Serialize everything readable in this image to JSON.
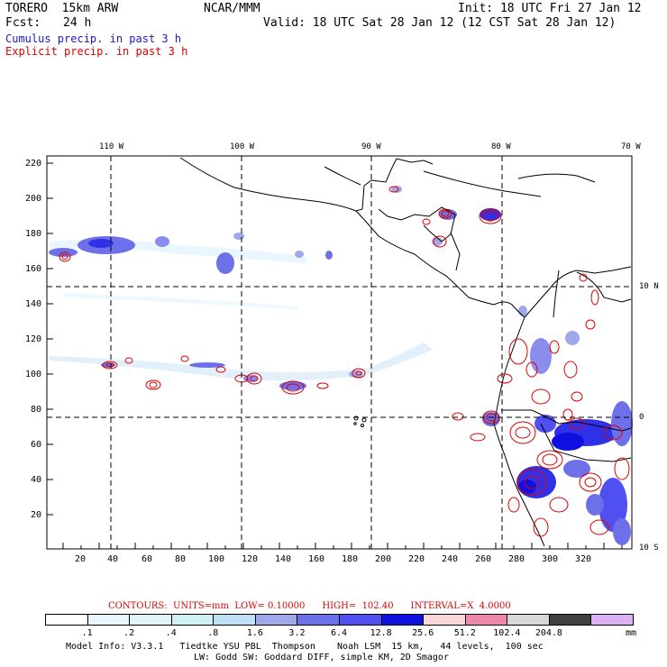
{
  "header": {
    "model": "TORERO  15km ARW",
    "org": "NCAR/MMM",
    "init": "Init: 18 UTC Fri 27 Jan 12",
    "fcst_label": "Fcst:",
    "fcst_value": "24 h",
    "valid": "Valid: 18 UTC Sat 28 Jan 12 (12 CST Sat 28 Jan 12)"
  },
  "legend": {
    "cumulus": "Cumulus precip. in past 3 h",
    "explicit": "Explicit precip. in past 3 h",
    "cumulus_color": "#1a1acc",
    "explicit_color": "#dd0000"
  },
  "map": {
    "top_lon_labels": [
      "110 W",
      "100 W",
      "90 W",
      "80 W",
      "70 W"
    ],
    "right_lat_labels": [
      "10 N",
      "0",
      "10 S"
    ],
    "x_ticks": [
      "20",
      "40",
      "60",
      "80",
      "100",
      "120",
      "140",
      "160",
      "180",
      "200",
      "220",
      "240",
      "260",
      "280",
      "300",
      "320"
    ],
    "y_ticks": [
      "220",
      "200",
      "180",
      "160",
      "140",
      "120",
      "100",
      "80",
      "60",
      "40",
      "20"
    ]
  },
  "contour_info": {
    "label": "CONTOURS:  UNITS=mm  LOW= 0.10000      HIGH=  102.40      INTERVAL=X  4.0000"
  },
  "colorbar": {
    "colors": [
      "#ffffff",
      "#eaf6ff",
      "#e2f5f8",
      "#d0f0f5",
      "#c0e0f8",
      "#a0a8ec",
      "#6e70ea",
      "#5050f0",
      "#1010e0",
      "#f8d8d8",
      "#ee88aa",
      "#d8d8d8",
      "#404040",
      "#dcb0f4"
    ],
    "labels": [
      ".1",
      ".2",
      ".4",
      ".8",
      "1.6",
      "3.2",
      "6.4",
      "12.8",
      "25.6",
      "51.2",
      "102.4",
      "204.8"
    ],
    "unit": "mm"
  },
  "footer": {
    "line1": "Model Info: V3.3.1   Tiedtke YSU PBL  Thompson    Noah LSM  15 km,   44 levels,  100 sec",
    "line2": "LW: Godd SW: Goddard DIFF, simple KM, 2D Smagor"
  }
}
